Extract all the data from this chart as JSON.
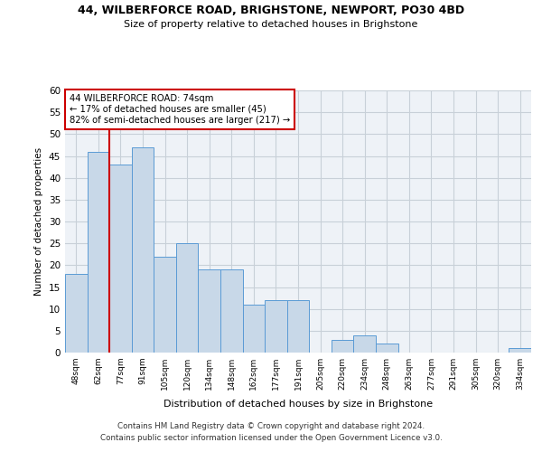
{
  "title1": "44, WILBERFORCE ROAD, BRIGHSTONE, NEWPORT, PO30 4BD",
  "title2": "Size of property relative to detached houses in Brighstone",
  "xlabel": "Distribution of detached houses by size in Brighstone",
  "ylabel": "Number of detached properties",
  "bar_labels": [
    "48sqm",
    "62sqm",
    "77sqm",
    "91sqm",
    "105sqm",
    "120sqm",
    "134sqm",
    "148sqm",
    "162sqm",
    "177sqm",
    "191sqm",
    "205sqm",
    "220sqm",
    "234sqm",
    "248sqm",
    "263sqm",
    "277sqm",
    "291sqm",
    "305sqm",
    "320sqm",
    "334sqm"
  ],
  "bar_values": [
    18,
    46,
    43,
    47,
    22,
    25,
    19,
    19,
    11,
    12,
    12,
    0,
    3,
    4,
    2,
    0,
    0,
    0,
    0,
    0,
    1
  ],
  "bar_color": "#c8d8e8",
  "bar_edge_color": "#5b9bd5",
  "ylim": [
    0,
    60
  ],
  "yticks": [
    0,
    5,
    10,
    15,
    20,
    25,
    30,
    35,
    40,
    45,
    50,
    55,
    60
  ],
  "vline_x": 1.5,
  "annotation_box_text": "44 WILBERFORCE ROAD: 74sqm\n← 17% of detached houses are smaller (45)\n82% of semi-detached houses are larger (217) →",
  "vline_color": "#cc0000",
  "box_edge_color": "#cc0000",
  "footer1": "Contains HM Land Registry data © Crown copyright and database right 2024.",
  "footer2": "Contains public sector information licensed under the Open Government Licence v3.0.",
  "bg_color": "#eef2f7",
  "grid_color": "#c8d0d8"
}
